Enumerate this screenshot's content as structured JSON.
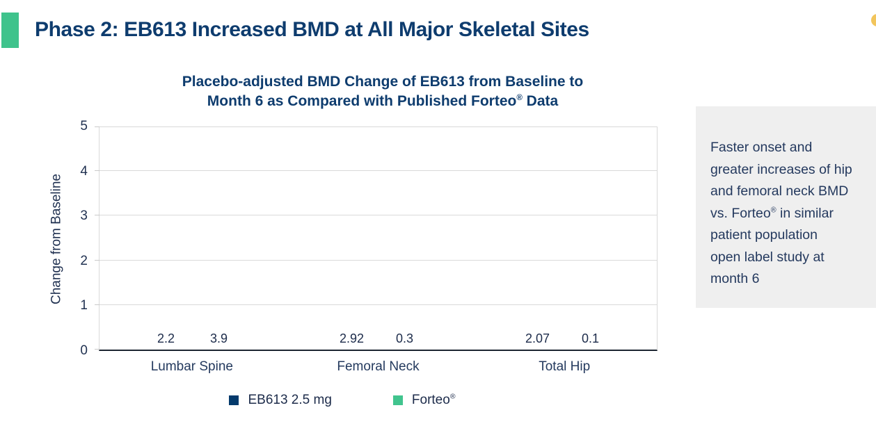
{
  "slide": {
    "title": "Phase 2: EB613 Increased BMD at All Major Skeletal Sites",
    "title_color": "#0e3c6e",
    "accent_square_color": "#3fc38c",
    "yellow_dot_color": "#f2c55c"
  },
  "panel": {
    "bg_color": "#efefef",
    "text_color": "#24395e",
    "lines": [
      "Faster onset and",
      "greater increases of hip",
      "and femoral neck BMD",
      "vs. Forteo® in similar",
      "patient population",
      "open label study at",
      "month 6"
    ]
  },
  "chart_data": {
    "type": "bar",
    "title_lines": [
      "Placebo-adjusted BMD Change of EB613 from Baseline to",
      "Month 6 as Compared with Published Forteo® Data"
    ],
    "categories": [
      "Lumbar Spine",
      "Femoral Neck",
      "Total Hip"
    ],
    "series": [
      {
        "name": "EB613 2.5 mg",
        "color": "#043a6c",
        "values": [
          2.2,
          2.92,
          2.07
        ]
      },
      {
        "name": "Forteo®",
        "color": "#41c48e",
        "values": [
          3.9,
          0.3,
          0.1
        ]
      }
    ],
    "xlabel": "",
    "ylabel": "Change from Baseline",
    "ylim": [
      0,
      5
    ],
    "yticks": [
      0,
      1,
      2,
      3,
      4,
      5
    ],
    "grid": "horizontal",
    "gridline_color": "#d9d9d9",
    "axis_color": "#1b2430",
    "legend_position": "bottom"
  }
}
